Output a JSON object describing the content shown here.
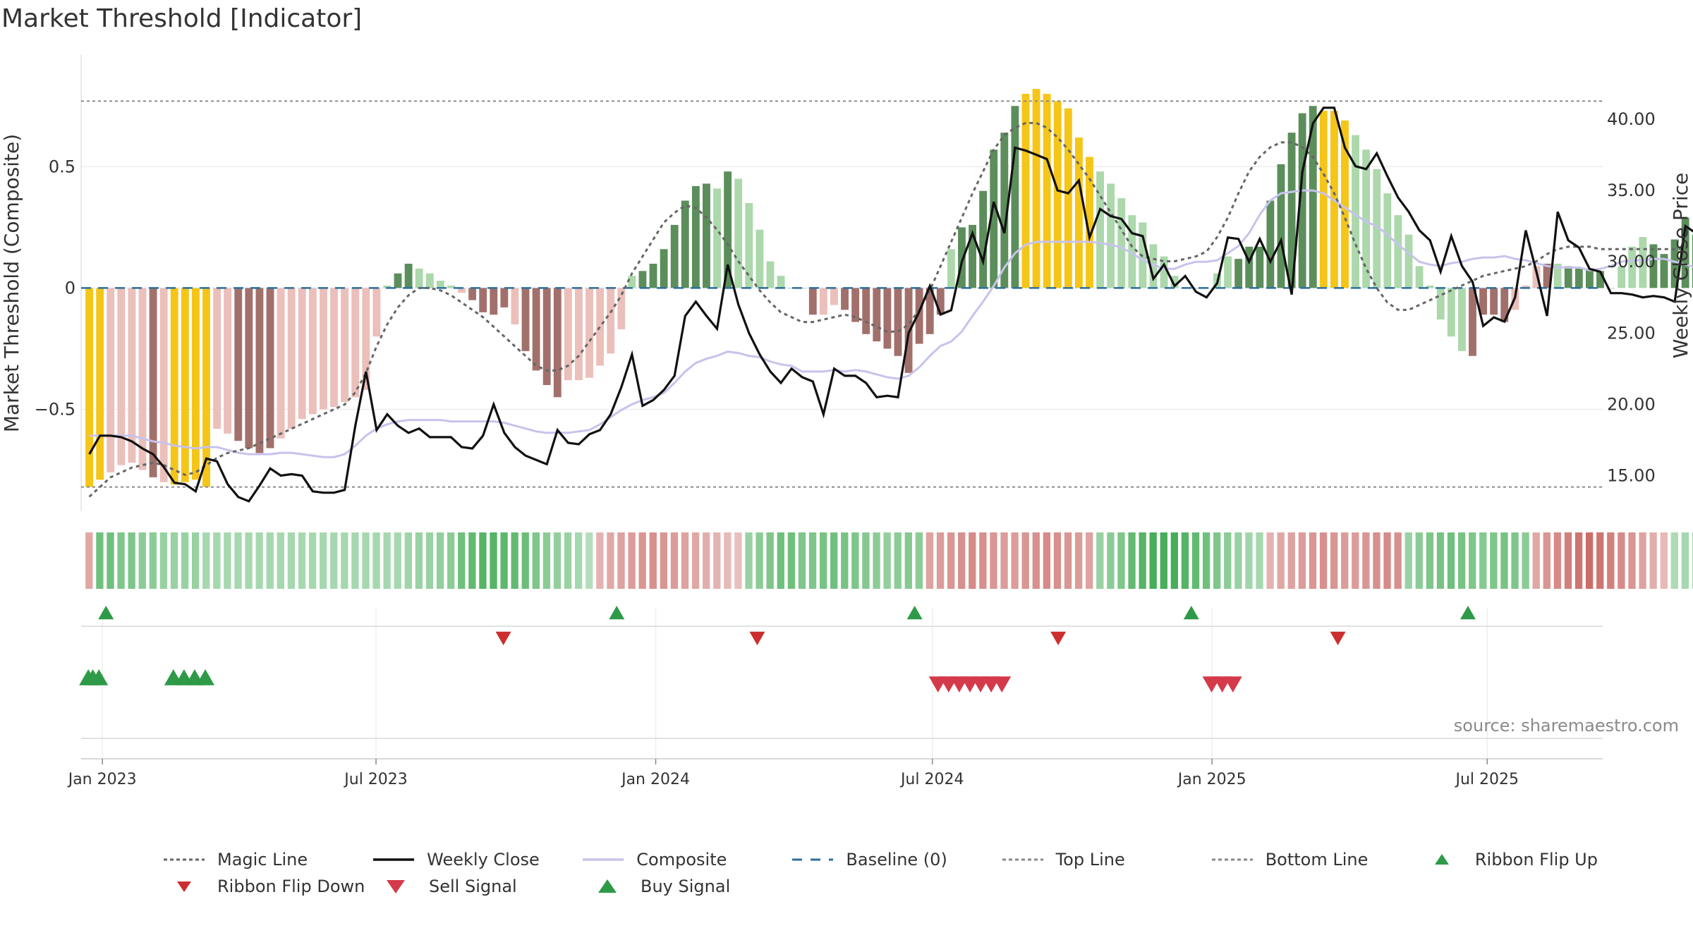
{
  "title": "Market Threshold [Indicator]",
  "source": "source: sharemaestro.com",
  "colors": {
    "gold": "#f5c518",
    "pos_dark": "#5b8e5b",
    "pos_light": "#acd8ac",
    "neg_dark": "#a2706b",
    "neg_light": "#ebbfba",
    "close": "#111111",
    "composite": "#c7c3ec",
    "magic": "#777777",
    "baseline": "#2c6f9b",
    "buy": "#2e9a48",
    "sell": "#d53a4a",
    "flip_down": "#cc2e2e"
  },
  "chart_data": {
    "type": "bar",
    "title": "Market Threshold [Indicator]",
    "ylabel_left": "Market Threshold (Composite)",
    "ylabel_right": "Weekly Close Price",
    "left_ticks": [
      {
        "v": 0.5,
        "label": "0.5"
      },
      {
        "v": 0,
        "label": "0"
      },
      {
        "v": -0.5,
        "label": "−0.5"
      }
    ],
    "right_ticks": [
      {
        "v": 40,
        "label": "40.00"
      },
      {
        "v": 35,
        "label": "35.00"
      },
      {
        "v": 30,
        "label": "30.00"
      },
      {
        "v": 25,
        "label": "25.00"
      },
      {
        "v": 20,
        "label": "20.00"
      },
      {
        "v": 15,
        "label": "15.00"
      }
    ],
    "left_ylim": [
      -0.92,
      0.96
    ],
    "right_ylim": [
      12.5,
      44.5
    ],
    "x_range": [
      "2022-12-19",
      "2025-09-15"
    ],
    "x_ticks": [
      {
        "date": "2023-01-02",
        "label": "Jan 2023"
      },
      {
        "date": "2023-07-01",
        "label": "Jul 2023"
      },
      {
        "date": "2024-01-01",
        "label": "Jan 2024"
      },
      {
        "date": "2024-07-01",
        "label": "Jul 2024"
      },
      {
        "date": "2025-01-01",
        "label": "Jan 2025"
      },
      {
        "date": "2025-07-01",
        "label": "Jul 2025"
      }
    ],
    "weeks_start": "2022-12-20",
    "top_line": 0.77,
    "bottom_line": -0.82,
    "baseline": 0,
    "composite_bars": [
      -0.82,
      -0.79,
      -0.76,
      -0.73,
      -0.72,
      -0.75,
      -0.78,
      -0.8,
      -0.81,
      -0.8,
      -0.79,
      -0.82,
      -0.58,
      -0.6,
      -0.63,
      -0.66,
      -0.68,
      -0.66,
      -0.62,
      -0.58,
      -0.54,
      -0.52,
      -0.5,
      -0.49,
      -0.47,
      -0.45,
      -0.42,
      -0.2,
      0.01,
      0.06,
      0.1,
      0.08,
      0.06,
      0.03,
      0.01,
      -0.02,
      -0.05,
      -0.1,
      -0.11,
      -0.08,
      -0.15,
      -0.26,
      -0.34,
      -0.4,
      -0.45,
      -0.38,
      -0.38,
      -0.37,
      -0.32,
      -0.27,
      -0.17,
      0.05,
      0.07,
      0.1,
      0.16,
      0.26,
      0.36,
      0.42,
      0.43,
      0.41,
      0.48,
      0.45,
      0.35,
      0.24,
      0.11,
      0.05,
      0.0,
      0.0,
      -0.11,
      -0.11,
      -0.07,
      -0.09,
      -0.14,
      -0.19,
      -0.22,
      -0.25,
      -0.28,
      -0.35,
      -0.23,
      -0.19,
      -0.11,
      0.16,
      0.25,
      0.26,
      0.4,
      0.57,
      0.64,
      0.75,
      0.8,
      0.82,
      0.8,
      0.77,
      0.74,
      0.62,
      0.54,
      0.48,
      0.43,
      0.37,
      0.3,
      0.27,
      0.18,
      0.13,
      0.05,
      0.0,
      0.0,
      0.0,
      0.06,
      0.13,
      0.12,
      0.17,
      0.17,
      0.36,
      0.51,
      0.64,
      0.72,
      0.75,
      0.73,
      0.73,
      0.69,
      0.63,
      0.57,
      0.49,
      0.39,
      0.3,
      0.22,
      0.09,
      0.01,
      -0.13,
      -0.2,
      -0.26,
      -0.28,
      -0.11,
      -0.11,
      -0.14,
      -0.09,
      0.01,
      0.09,
      0.1,
      0.1,
      0.09,
      0.08,
      0.08,
      0.07,
      0.0,
      0.09,
      0.17,
      0.21,
      0.18,
      0.14,
      0.2,
      0.29,
      0.22,
      0.15,
      0.1
    ],
    "bar_colors": "0=gold,1=pos_dark,2=pos_light,3=neg_dark,4=neg_light",
    "bar_kinds": [
      0,
      0,
      4,
      4,
      4,
      4,
      3,
      4,
      0,
      0,
      0,
      0,
      4,
      4,
      3,
      3,
      3,
      3,
      4,
      4,
      4,
      4,
      4,
      4,
      4,
      4,
      4,
      4,
      2,
      1,
      1,
      2,
      2,
      2,
      2,
      4,
      3,
      3,
      3,
      3,
      4,
      3,
      3,
      3,
      3,
      4,
      4,
      4,
      4,
      4,
      4,
      2,
      1,
      1,
      1,
      1,
      1,
      1,
      1,
      2,
      1,
      2,
      2,
      2,
      2,
      2,
      2,
      2,
      3,
      4,
      4,
      3,
      3,
      3,
      3,
      3,
      3,
      3,
      3,
      3,
      3,
      2,
      1,
      1,
      1,
      1,
      1,
      1,
      0,
      0,
      0,
      0,
      0,
      0,
      0,
      2,
      2,
      2,
      2,
      2,
      2,
      2,
      2,
      2,
      2,
      2,
      2,
      2,
      1,
      1,
      1,
      1,
      1,
      1,
      1,
      1,
      0,
      0,
      0,
      2,
      2,
      2,
      2,
      2,
      2,
      2,
      2,
      2,
      2,
      2,
      3,
      3,
      3,
      3,
      4,
      4,
      4,
      3,
      2,
      1,
      1,
      1,
      1,
      2,
      2,
      2,
      2,
      1,
      1,
      1,
      1,
      1,
      1,
      1,
      1,
      1,
      1
    ],
    "weekly_close": [
      16.5,
      17.8,
      17.8,
      17.7,
      17.4,
      16.9,
      16.5,
      15.6,
      14.5,
      14.4,
      13.9,
      16.2,
      16.0,
      14.4,
      13.5,
      13.2,
      14.3,
      15.5,
      15.0,
      15.1,
      15.0,
      13.9,
      13.8,
      13.8,
      14.0,
      18.5,
      22.3,
      18.2,
      19.3,
      18.5,
      18.0,
      18.3,
      17.7,
      17.7,
      17.7,
      17.0,
      16.9,
      17.8,
      20.0,
      18.0,
      17.0,
      16.4,
      16.1,
      15.8,
      18.2,
      17.3,
      17.2,
      17.9,
      18.2,
      19.3,
      21.2,
      23.5,
      19.9,
      20.3,
      21.0,
      22.0,
      26.2,
      27.2,
      26.2,
      25.3,
      29.8,
      27.0,
      25.0,
      23.5,
      22.3,
      21.5,
      22.5,
      21.9,
      21.6,
      19.3,
      22.5,
      22.0,
      22.0,
      21.5,
      20.5,
      20.6,
      20.5,
      25.0,
      26.5,
      28.3,
      26.3,
      26.6,
      30.0,
      32.0,
      30.0,
      34.2,
      32.0,
      38.0,
      37.8,
      37.5,
      37.2,
      35.0,
      34.8,
      35.7,
      31.7,
      33.7,
      33.2,
      33.0,
      32.0,
      31.8,
      28.8,
      29.8,
      28.3,
      29.0,
      27.9,
      27.5,
      28.5,
      31.7,
      31.6,
      30.0,
      31.6,
      30.0,
      31.5,
      27.7,
      36.3,
      39.7,
      40.8,
      40.8,
      38.0,
      36.7,
      36.5,
      37.6,
      36.0,
      34.5,
      33.5,
      32.2,
      31.5,
      29.3,
      31.8,
      29.7,
      28.6,
      25.5,
      26.1,
      25.8,
      27.5,
      32.2,
      29.3,
      26.2,
      33.5,
      31.5,
      31.0,
      29.5,
      29.3,
      27.8,
      27.8,
      27.7,
      27.5,
      27.6,
      27.5,
      27.2,
      32.5,
      32.0,
      29.5,
      29.8,
      32.2,
      31.8,
      28.5,
      29.8,
      27.2,
      29.0
    ],
    "composite_line": [
      17.8,
      17.8,
      17.8,
      17.8,
      17.8,
      17.6,
      17.4,
      17.3,
      17.1,
      17.0,
      16.9,
      17.0,
      17.0,
      16.8,
      16.6,
      16.5,
      16.5,
      16.5,
      16.6,
      16.6,
      16.5,
      16.4,
      16.3,
      16.3,
      16.5,
      17.1,
      17.8,
      18.3,
      18.6,
      18.8,
      18.9,
      18.9,
      18.9,
      18.9,
      18.8,
      18.8,
      18.8,
      18.8,
      18.8,
      18.7,
      18.5,
      18.3,
      18.1,
      18.0,
      18.0,
      18.0,
      18.1,
      18.2,
      18.6,
      19.1,
      19.6,
      20.0,
      20.3,
      20.5,
      20.8,
      21.5,
      22.3,
      22.9,
      23.2,
      23.4,
      23.7,
      23.6,
      23.4,
      23.3,
      23.0,
      22.8,
      22.7,
      22.3,
      22.3,
      22.3,
      22.4,
      22.3,
      22.4,
      22.3,
      22.1,
      21.9,
      21.8,
      22.0,
      22.6,
      23.4,
      24.1,
      24.4,
      25.1,
      26.2,
      27.2,
      28.3,
      29.6,
      30.6,
      31.2,
      31.4,
      31.4,
      31.4,
      31.4,
      31.4,
      31.4,
      31.3,
      31.2,
      31.0,
      30.6,
      30.1,
      29.8,
      29.5,
      29.5,
      29.8,
      30.0,
      30.0,
      30.1,
      30.6,
      31.1,
      32.0,
      33.3,
      34.3,
      34.8,
      34.9,
      35.0,
      35.0,
      34.8,
      34.3,
      33.8,
      33.3,
      32.8,
      32.5,
      31.9,
      31.2,
      30.6,
      30.0,
      29.8,
      29.7,
      29.9,
      30.0,
      30.2,
      30.3,
      30.3,
      30.4,
      30.2,
      30.1,
      29.9,
      29.7,
      29.6,
      29.6,
      29.6,
      29.4,
      29.5,
      29.7,
      30.0,
      30.1,
      30.1,
      30.2,
      30.2,
      30.0,
      29.8,
      29.6,
      29.4
    ],
    "magic_line": [
      -0.86,
      -0.82,
      -0.78,
      -0.76,
      -0.74,
      -0.73,
      -0.72,
      -0.73,
      -0.75,
      -0.77,
      -0.76,
      -0.73,
      -0.7,
      -0.68,
      -0.67,
      -0.66,
      -0.64,
      -0.62,
      -0.6,
      -0.58,
      -0.56,
      -0.54,
      -0.52,
      -0.5,
      -0.48,
      -0.43,
      -0.35,
      -0.24,
      -0.15,
      -0.08,
      -0.03,
      0.0,
      0.0,
      -0.01,
      -0.03,
      -0.06,
      -0.09,
      -0.12,
      -0.16,
      -0.2,
      -0.24,
      -0.28,
      -0.32,
      -0.34,
      -0.34,
      -0.32,
      -0.28,
      -0.22,
      -0.16,
      -0.1,
      -0.03,
      0.06,
      0.13,
      0.2,
      0.27,
      0.31,
      0.34,
      0.33,
      0.29,
      0.24,
      0.18,
      0.11,
      0.05,
      -0.01,
      -0.06,
      -0.1,
      -0.12,
      -0.14,
      -0.14,
      -0.13,
      -0.12,
      -0.11,
      -0.12,
      -0.14,
      -0.16,
      -0.18,
      -0.18,
      -0.15,
      -0.09,
      -0.01,
      0.09,
      0.19,
      0.29,
      0.39,
      0.48,
      0.57,
      0.63,
      0.66,
      0.68,
      0.68,
      0.66,
      0.62,
      0.57,
      0.51,
      0.45,
      0.38,
      0.31,
      0.24,
      0.17,
      0.13,
      0.12,
      0.11,
      0.11,
      0.12,
      0.13,
      0.15,
      0.21,
      0.29,
      0.39,
      0.48,
      0.54,
      0.58,
      0.6,
      0.6,
      0.58,
      0.54,
      0.47,
      0.39,
      0.29,
      0.18,
      0.08,
      0.0,
      -0.06,
      -0.09,
      -0.09,
      -0.07,
      -0.05,
      -0.03,
      -0.01,
      0.01,
      0.03,
      0.05,
      0.06,
      0.07,
      0.08,
      0.09,
      0.11,
      0.14,
      0.16,
      0.17,
      0.17,
      0.17,
      0.16,
      0.16,
      0.16,
      0.16,
      0.16,
      0.16,
      0.16,
      0.16,
      0.16
    ],
    "ribbon_values": [
      -0.4,
      0.7,
      0.7,
      0.6,
      0.6,
      0.5,
      0.5,
      0.4,
      0.4,
      0.4,
      0.4,
      0.3,
      0.3,
      0.3,
      0.3,
      0.3,
      0.3,
      0.3,
      0.3,
      0.3,
      0.3,
      0.3,
      0.3,
      0.3,
      0.3,
      0.3,
      0.3,
      0.3,
      0.3,
      0.3,
      0.35,
      0.4,
      0.4,
      0.45,
      0.5,
      0.7,
      0.8,
      0.9,
      0.9,
      0.85,
      0.8,
      0.75,
      0.6,
      0.5,
      0.45,
      0.4,
      0.3,
      0.2,
      -0.3,
      -0.4,
      -0.45,
      -0.5,
      -0.55,
      -0.6,
      -0.55,
      -0.5,
      -0.45,
      -0.4,
      -0.35,
      -0.3,
      -0.25,
      -0.2,
      0.4,
      0.5,
      0.6,
      0.7,
      0.7,
      0.6,
      0.6,
      0.65,
      0.7,
      0.65,
      0.6,
      0.55,
      0.5,
      0.45,
      0.5,
      0.55,
      0.5,
      -0.45,
      -0.5,
      -0.55,
      -0.6,
      -0.65,
      -0.6,
      -0.55,
      -0.5,
      -0.5,
      -0.55,
      -0.6,
      -0.65,
      -0.6,
      -0.55,
      -0.5,
      -0.45,
      0.4,
      0.5,
      0.6,
      0.8,
      0.9,
      1.0,
      1.0,
      1.0,
      0.9,
      0.8,
      0.7,
      0.6,
      0.5,
      0.4,
      0.35,
      0.3,
      -0.3,
      -0.4,
      -0.45,
      -0.5,
      -0.55,
      -0.6,
      -0.55,
      -0.5,
      -0.5,
      -0.55,
      -0.6,
      -0.65,
      -0.6,
      0.4,
      0.5,
      0.6,
      0.65,
      0.7,
      0.65,
      0.6,
      0.55,
      0.6,
      0.65,
      0.6,
      0.5,
      -0.4,
      -0.55,
      -0.65,
      -0.75,
      -0.85,
      -0.9,
      -0.85,
      -0.75,
      -0.65,
      -0.55,
      -0.45,
      -0.35,
      -0.25,
      0.25,
      0.3,
      0.3,
      0.35,
      0.35,
      0.35,
      0.35,
      0.35,
      0.35,
      0.3,
      0.3,
      0.3,
      0.35,
      0.35,
      0.35,
      0.35,
      0.3,
      0.3
    ],
    "ribbon_flip_up": [
      "2022-12-27",
      "2023-11-28",
      "2024-06-11",
      "2024-12-10",
      "2025-06-10"
    ],
    "ribbon_flip_down": [
      "2023-09-20",
      "2024-03-05",
      "2024-09-19",
      "2025-03-22"
    ],
    "buy_signals": [
      "2022-12-20",
      "2022-12-23",
      "2022-12-27",
      "2023-02-14",
      "2023-02-21",
      "2023-02-28",
      "2023-03-07"
    ],
    "sell_signals": [
      "2024-07-01",
      "2024-07-08",
      "2024-07-15",
      "2024-07-22",
      "2024-07-29",
      "2024-08-05",
      "2024-08-12",
      "2024-12-28",
      "2025-01-04",
      "2025-01-11"
    ],
    "legend": [
      {
        "label": "Magic Line",
        "kind": "dotted",
        "color": "#666666"
      },
      {
        "label": "Weekly Close",
        "kind": "solid",
        "color": "#111111"
      },
      {
        "label": "Composite",
        "kind": "solid",
        "color": "#c7c3ec"
      },
      {
        "label": "Baseline (0)",
        "kind": "dashed",
        "color": "#2c6f9b"
      },
      {
        "label": "Top Line",
        "kind": "dotted",
        "color": "#888888"
      },
      {
        "label": "Bottom Line",
        "kind": "dotted",
        "color": "#888888"
      },
      {
        "label": "Ribbon Flip Up",
        "kind": "tri-up-small",
        "color": "#2e9a48"
      },
      {
        "label": "Ribbon Flip Down",
        "kind": "tri-down-small",
        "color": "#cc2e2e"
      },
      {
        "label": "Sell Signal",
        "kind": "tri-down",
        "color": "#d53a4a"
      },
      {
        "label": "Buy Signal",
        "kind": "tri-up",
        "color": "#2e9a48"
      }
    ]
  }
}
